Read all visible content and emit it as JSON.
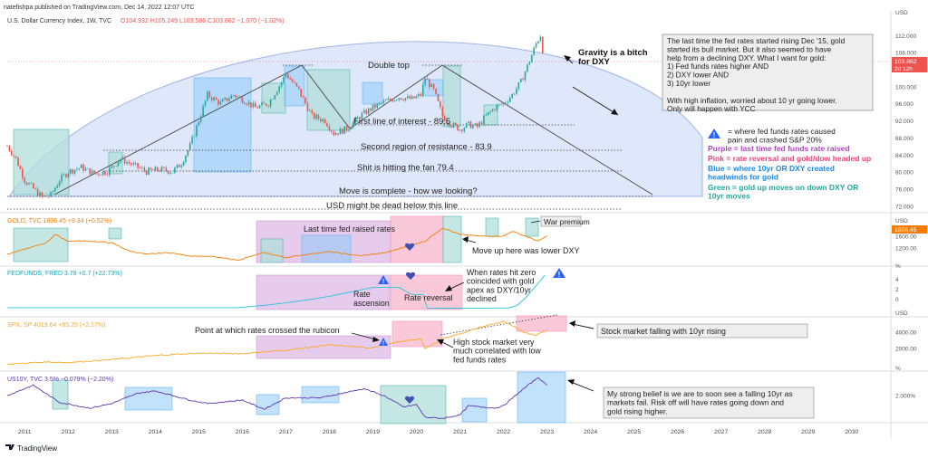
{
  "header": {
    "published": "natefishpa published on TradingView.com, Dec 14, 2022 12:07 UTC",
    "symbol": "U.S. Dollar Currency Index, 1W, TVC",
    "ohlc": "O104.932 H105.249 L103.586 C103.862 −1.070 (−1.02%)"
  },
  "footer": {
    "brand": "TradingView"
  },
  "colors": {
    "dxy_up": "#26a69a",
    "dxy_down": "#ef5350",
    "gold": "#f57c00",
    "fedfunds": "#26c6da",
    "spx": "#f9a825",
    "us10y": "#5e35b1",
    "green_box": "#b2dfdb",
    "blue_box": "#90caf9",
    "purple_box": "#e1bee7",
    "pink_box": "#f8bbd0",
    "arc": "#c5d5f5"
  },
  "chart_data": [
    {
      "type": "line",
      "title": "U.S. Dollar Currency Index, 1W, TVC",
      "x_ticks": [
        "2011",
        "2012",
        "2013",
        "2014",
        "2015",
        "2016",
        "2017",
        "2018",
        "2019",
        "2020",
        "2021",
        "2022",
        "2023",
        "2024",
        "2025",
        "2026",
        "2027",
        "2028",
        "2029",
        "2030"
      ],
      "xlim": [
        2010.6,
        2030.9
      ],
      "ylim": [
        71,
        116
      ],
      "y_ticks": [
        "USD",
        "112.000",
        "108.000",
        "104.000",
        "100.000",
        "96.000",
        "92.000",
        "88.000",
        "84.000",
        "80.000",
        "76.000",
        "72.000"
      ],
      "last_value": "103.862",
      "countdown": "2d 12h",
      "x": [
        2010.6,
        2010.8,
        2011.0,
        2011.2,
        2011.4,
        2011.6,
        2011.8,
        2012.0,
        2012.3,
        2012.6,
        2012.9,
        2013.2,
        2013.5,
        2013.8,
        2014.1,
        2014.4,
        2014.6,
        2014.8,
        2015.0,
        2015.2,
        2015.5,
        2015.8,
        2016.0,
        2016.3,
        2016.6,
        2016.9,
        2017.0,
        2017.3,
        2017.6,
        2017.9,
        2018.1,
        2018.4,
        2018.7,
        2019.0,
        2019.3,
        2019.6,
        2019.9,
        2020.1,
        2020.2,
        2020.4,
        2020.6,
        2020.8,
        2021.0,
        2021.2,
        2021.4,
        2021.6,
        2021.8,
        2022.0,
        2022.2,
        2022.4,
        2022.6,
        2022.75,
        2022.85,
        2022.95
      ],
      "values": [
        86,
        83,
        78,
        76,
        74,
        74.5,
        78,
        80,
        81,
        79.5,
        80,
        83,
        81.5,
        80,
        80.5,
        80,
        82,
        86,
        92,
        98,
        96,
        98,
        97,
        95,
        96,
        101,
        103,
        99,
        93,
        92,
        89,
        90,
        93,
        95,
        96.5,
        97.5,
        97,
        98,
        102,
        99,
        93,
        91,
        90,
        91,
        90.5,
        93,
        95,
        96,
        98,
        101,
        106,
        110,
        112,
        105
      ]
    },
    {
      "type": "line",
      "title": "GOLD, TVC",
      "legend": "GOLD, TVC 1806.45 +9.34 (+0.52%)",
      "y_ticks": [
        "USD",
        "1600.00",
        "1200.00"
      ],
      "last_value": "1806.45",
      "x": [
        2010.6,
        2011.0,
        2011.5,
        2011.7,
        2012.0,
        2012.5,
        2013.0,
        2013.4,
        2013.8,
        2014.3,
        2014.8,
        2015.3,
        2015.9,
        2016.5,
        2017.0,
        2017.5,
        2018.0,
        2018.7,
        2019.3,
        2019.8,
        2020.2,
        2020.6,
        2021.0,
        2021.5,
        2022.0,
        2022.2,
        2022.8,
        2023.0
      ],
      "values": [
        1250,
        1400,
        1600,
        1850,
        1650,
        1650,
        1600,
        1350,
        1250,
        1300,
        1200,
        1180,
        1070,
        1300,
        1150,
        1250,
        1330,
        1200,
        1300,
        1500,
        1650,
        2050,
        1850,
        1800,
        1800,
        1950,
        1650,
        1806
      ]
    },
    {
      "type": "line",
      "title": "FEDFUNDS, FRED",
      "legend": "FEDFUNDS, FRED 3.78 +0.7 (+22.73%)",
      "y_ticks": [
        "%",
        "4",
        "2",
        "0"
      ],
      "x": [
        2010.6,
        2015.9,
        2016.5,
        2017.0,
        2017.5,
        2018.0,
        2018.5,
        2019.0,
        2019.6,
        2019.9,
        2020.15,
        2020.25,
        2022.1,
        2022.3,
        2022.5,
        2022.75,
        2022.95
      ],
      "values": [
        0.12,
        0.12,
        0.38,
        0.66,
        1.0,
        1.4,
        1.9,
        2.4,
        2.4,
        1.6,
        1.6,
        0.05,
        0.08,
        0.33,
        1.2,
        2.6,
        3.78
      ]
    },
    {
      "type": "line",
      "title": "SPX, SP",
      "legend": "SPX, SP 4019.64 +85.25 (+2.17%)",
      "y_ticks": [
        "USD",
        "4000.00",
        "2000.00"
      ],
      "x": [
        2010.6,
        2011.5,
        2012.0,
        2013.0,
        2014.0,
        2015.0,
        2016.0,
        2017.0,
        2018.0,
        2018.9,
        2019.0,
        2019.5,
        2020.1,
        2020.2,
        2020.6,
        2021.0,
        2021.5,
        2022.0,
        2022.5,
        2022.75,
        2023.0
      ],
      "values": [
        1100,
        1300,
        1250,
        1500,
        1850,
        2050,
        2000,
        2300,
        2750,
        2500,
        2550,
        2950,
        3300,
        2400,
        3300,
        3700,
        4300,
        4750,
        3800,
        3600,
        4020
      ]
    },
    {
      "type": "line",
      "title": "US10Y, TVC",
      "legend": "US10Y, TVC 3.5% −0.079% (−2.20%)",
      "y_ticks": [
        "%",
        "2.000%"
      ],
      "x": [
        2010.6,
        2011.2,
        2011.8,
        2012.5,
        2013.0,
        2013.6,
        2014.0,
        2014.8,
        2015.2,
        2016.0,
        2016.5,
        2017.0,
        2017.8,
        2018.8,
        2019.3,
        2019.7,
        2020.0,
        2020.2,
        2020.6,
        2021.0,
        2021.2,
        2021.8,
        2022.0,
        2022.4,
        2022.8,
        2022.9,
        2023.0
      ],
      "values": [
        2.6,
        3.5,
        2.0,
        1.5,
        1.9,
        2.8,
        3.0,
        2.2,
        1.9,
        2.2,
        1.4,
        2.4,
        2.4,
        3.2,
        2.5,
        1.6,
        1.8,
        0.7,
        0.6,
        0.9,
        1.7,
        1.5,
        1.7,
        3.0,
        4.2,
        3.8,
        3.5
      ]
    }
  ],
  "annotations": {
    "double_top": "Double top",
    "first_interest": "First line of interest - 89.5",
    "second_resistance": "Second region of resistance - 83.9",
    "fan": "Shit is hitting the fan 79.4",
    "move_complete": "Move is complete - how we looking?",
    "usd_dead": "USD might be dead below this line",
    "gravity": "Gravity is a bitch\nfor DXY",
    "note": "The last time the fed rates started rising Dec '15, gold\nstarted its bull market.  But it also seemed to have\nhelp from a declining DXY.  What I want for gold:\n1) Fed funds rates higher AND\n2) DXY lower AND\n3) 10yr lower\n\nWith high inflation, worried about 10 yr going lower.\nOnly will happen with YCC",
    "legend_warn": "= where fed funds rates caused\npain and crashed S&P 20%",
    "legend_purple": "Purple = last time fed funds rate raised",
    "legend_pink": "Pink = rate reversal and gold/dow headed up",
    "legend_blue": "Blue = where 10yr OR DXY created\nheadwinds for gold",
    "legend_green": "Green = gold up moves on down DXY OR\n10yr moves",
    "last_raised": "Last time fed raised rates",
    "war_premium": "War premium",
    "lower_dxy": "Move up here was lower DXY",
    "rates_zero": "When rates hit zero\ncoincided with gold\napex as DXY/10yr\ndeclined",
    "rate_ascension": "Rate\nascension",
    "rate_reversal": "Rate reversal",
    "rubicon": "Point at which rates crossed the rubicon",
    "high_stock": "High stock market very\nmuch correlated with low\nfed funds rates",
    "stock_falling": "Stock market falling with 10yr rising",
    "belief": "My strong belief is we are to soon see a falling 10yr as\nmarkets fail.  Risk off will have rates going down and\ngold rising higher."
  }
}
